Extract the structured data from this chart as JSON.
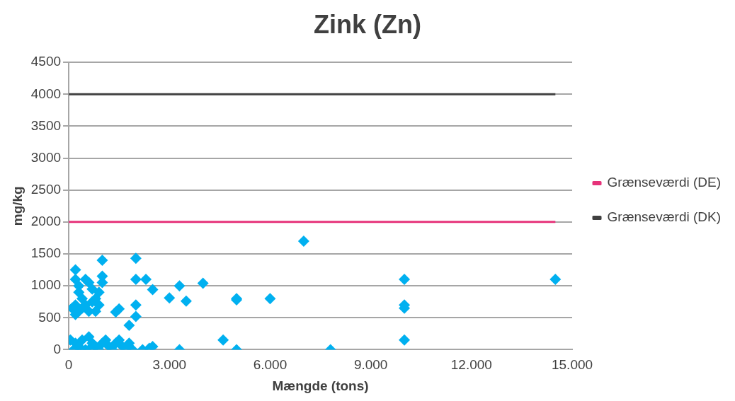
{
  "chart_data": {
    "type": "scatter",
    "title": "Zink (Zn)",
    "xlabel": "Mængde (tons)",
    "ylabel": "mg/kg",
    "xlim": [
      0,
      15000
    ],
    "xticks": [
      0,
      {
        "value": 3000,
        "label": "3.000"
      },
      {
        "value": 6000,
        "label": "6.000"
      },
      {
        "value": 9000,
        "label": "9.000"
      },
      {
        "value": 12000,
        "label": "12.000"
      },
      {
        "value": 15000,
        "label": "15.000"
      }
    ],
    "ylim": [
      0,
      4500
    ],
    "yticks": [
      0,
      500,
      1000,
      1500,
      2000,
      2500,
      3000,
      3500,
      4000,
      4500
    ],
    "grid": "y",
    "legend": "right",
    "series": [
      {
        "color": "#00b0f0",
        "marker": "diamond",
        "x": [
          14500,
          10000,
          10000,
          10000,
          10000,
          7000,
          7800,
          6000,
          5000,
          5000,
          5000,
          4600,
          4000,
          3500,
          3300,
          3300,
          3000,
          2500,
          2500,
          2300,
          2000,
          2000,
          2000,
          2000,
          1800,
          1500,
          1400,
          1000,
          1000,
          1000,
          200,
          200,
          300,
          500,
          600,
          300,
          700,
          400,
          800,
          200,
          500,
          900,
          300,
          600,
          800,
          200,
          100,
          400,
          700,
          900,
          50,
          200,
          300,
          400,
          500,
          600,
          700,
          800,
          900,
          1000,
          1100,
          1200,
          1400,
          1500,
          1600,
          1800,
          1900,
          2200,
          2400,
          150,
          350,
          600,
          1300,
          1700
        ],
        "values": [
          1100,
          1100,
          700,
          650,
          150,
          1700,
          0,
          800,
          800,
          780,
          0,
          150,
          1040,
          760,
          1000,
          0,
          810,
          940,
          50,
          1100,
          1430,
          1100,
          700,
          520,
          380,
          640,
          590,
          1400,
          1150,
          1050,
          1250,
          1100,
          1000,
          1100,
          1050,
          900,
          950,
          800,
          800,
          700,
          700,
          700,
          600,
          600,
          600,
          550,
          650,
          650,
          750,
          900,
          150,
          100,
          50,
          150,
          0,
          200,
          100,
          50,
          0,
          100,
          150,
          50,
          100,
          150,
          50,
          100,
          0,
          0,
          20,
          0,
          0,
          0,
          0,
          0
        ]
      },
      {
        "type": "line",
        "name": "Grænseværdi (DE)",
        "color": "#e6337a",
        "marker": "none",
        "x": [
          0,
          14500
        ],
        "values": [
          2000,
          2000
        ]
      },
      {
        "type": "line",
        "name": "Grænseværdi (DK)",
        "color": "#404040",
        "marker": "none",
        "x": [
          0,
          14500
        ],
        "values": [
          4000,
          4000
        ]
      }
    ]
  }
}
